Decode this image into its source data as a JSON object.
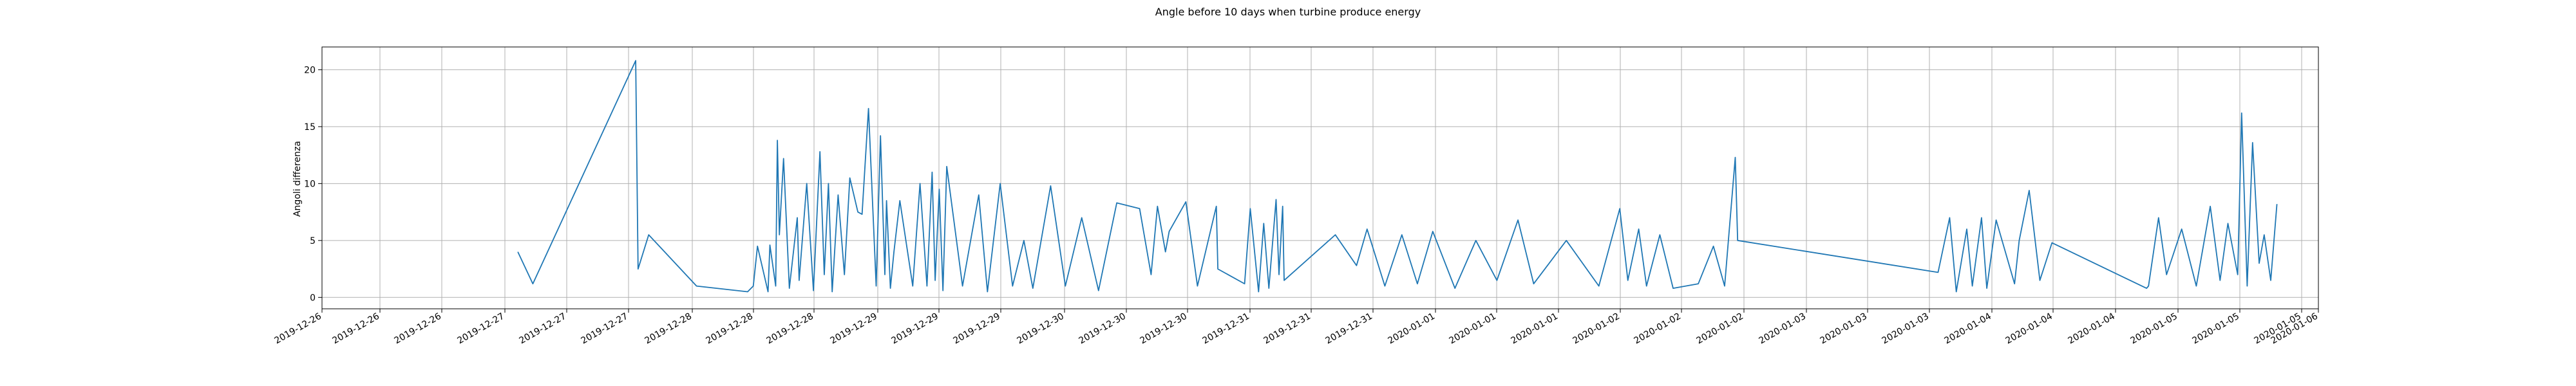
{
  "chart_data": {
    "type": "line",
    "title": "Angle before 10 days when turbine produce energy",
    "xlabel": "",
    "ylabel": "Angoli differenza",
    "ylim": [
      -1,
      22
    ],
    "y_ticks": [
      0,
      5,
      10,
      15,
      20
    ],
    "x_axis": "datetime",
    "x_ticks": [
      "2019-12-26",
      "2019-12-26",
      "2019-12-26",
      "2019-12-27",
      "2019-12-27",
      "2019-12-27",
      "2019-12-28",
      "2019-12-28",
      "2019-12-28",
      "2019-12-29",
      "2019-12-29",
      "2019-12-29",
      "2019-12-30",
      "2019-12-30",
      "2019-12-30",
      "2019-12-31",
      "2019-12-31",
      "2019-12-31",
      "2020-01-01",
      "2020-01-01",
      "2020-01-01",
      "2020-01-02",
      "2020-01-02",
      "2020-01-02",
      "2020-01-03",
      "2020-01-03",
      "2020-01-03",
      "2020-01-04",
      "2020-01-04",
      "2020-01-04",
      "2020-01-05",
      "2020-01-05",
      "2020-01-05",
      "2020-01-06"
    ],
    "grid": true,
    "line_color": "#1f77b4",
    "series": [
      {
        "x": [
          "2019-12-27 01:54",
          "2019-12-27 03:53",
          "2019-12-27 17:29",
          "2019-12-27 17:48",
          "2019-12-27 19:12",
          "2019-12-28 01:32",
          "2019-12-28 08:17",
          "2019-12-28 09:02",
          "2019-12-28 09:35",
          "2019-12-28 10:59",
          "2019-12-28 11:14",
          "2019-12-28 12:00",
          "2019-12-28 12:13",
          "2019-12-28 12:29",
          "2019-12-28 13:02",
          "2019-12-28 13:48",
          "2019-12-28 14:51",
          "2019-12-28 15:06",
          "2019-12-28 16:06",
          "2019-12-28 16:59",
          "2019-12-28 17:51",
          "2019-12-28 18:25",
          "2019-12-28 18:58",
          "2019-12-28 19:28",
          "2019-12-28 20:15",
          "2019-12-28 21:05",
          "2019-12-28 21:48",
          "2019-12-28 22:52",
          "2019-12-28 23:25",
          "2019-12-29 00:16",
          "2019-12-29 01:17",
          "2019-12-29 01:51",
          "2019-12-29 02:26",
          "2019-12-29 02:39",
          "2019-12-29 03:10",
          "2019-12-29 03:38",
          "2019-12-29 04:25",
          "2019-12-29 06:07",
          "2019-12-29 07:05",
          "2019-12-29 08:00",
          "2019-12-29 08:41",
          "2019-12-29 09:05",
          "2019-12-29 09:37",
          "2019-12-29 10:07",
          "2019-12-29 10:37",
          "2019-12-29 12:42",
          "2019-12-29 14:51",
          "2019-12-29 16:00",
          "2019-12-29 17:41",
          "2019-12-29 19:19",
          "2019-12-29 20:49",
          "2019-12-29 22:00",
          "2019-12-30 00:21",
          "2019-12-30 02:18",
          "2019-12-30 04:28",
          "2019-12-30 06:41",
          "2019-12-30 09:06",
          "2019-12-30 12:07",
          "2019-12-30 13:38",
          "2019-12-30 14:29",
          "2019-12-30 15:32",
          "2019-12-30 16:02",
          "2019-12-30 18:14",
          "2019-12-30 19:46",
          "2019-12-30 22:16",
          "2019-12-30 22:28",
          "2019-12-31 02:00",
          "2019-12-31 02:45",
          "2019-12-31 03:51",
          "2019-12-31 04:32",
          "2019-12-31 05:13",
          "2019-12-31 06:10",
          "2019-12-31 06:33",
          "2019-12-31 07:02",
          "2019-12-31 07:14",
          "2019-12-31 14:00",
          "2019-12-31 16:48",
          "2019-12-31 18:12",
          "2019-12-31 20:33",
          "2019-12-31 22:48",
          "2020-01-01 00:51",
          "2020-01-01 02:53",
          "2020-01-01 05:49",
          "2020-01-01 08:35",
          "2020-01-01 11:22",
          "2020-01-01 14:09",
          "2020-01-01 16:14",
          "2020-01-01 20:33",
          "2020-01-02 00:51",
          "2020-01-02 03:37",
          "2020-01-02 04:41",
          "2020-01-02 06:07",
          "2020-01-02 07:09",
          "2020-01-02 08:55",
          "2020-01-02 10:40",
          "2020-01-02 14:00",
          "2020-01-02 16:00",
          "2020-01-02 17:29",
          "2020-01-02 18:53",
          "2020-01-02 19:12",
          "2020-01-03 21:42",
          "2020-01-03 23:14",
          "2020-01-04 00:07",
          "2020-01-04 01:30",
          "2020-01-04 02:14",
          "2020-01-04 03:27",
          "2020-01-04 04:09",
          "2020-01-04 05:23",
          "2020-01-04 07:49",
          "2020-01-04 08:26",
          "2020-01-04 09:45",
          "2020-01-04 11:10",
          "2020-01-04 12:46",
          "2020-01-05 01:16",
          "2020-01-05 01:32",
          "2020-01-05 02:52",
          "2020-01-05 03:55",
          "2020-01-05 05:55",
          "2020-01-05 07:51",
          "2020-01-05 09:42",
          "2020-01-05 11:00",
          "2020-01-05 12:02",
          "2020-01-05 13:20",
          "2020-01-05 13:51",
          "2020-01-05 14:35",
          "2020-01-05 15:18",
          "2020-01-05 16:10",
          "2020-01-05 16:50",
          "2020-01-05 17:42",
          "2020-01-05 18:31"
        ],
        "y": [
          4.0,
          1.2,
          20.8,
          2.5,
          5.5,
          1.0,
          0.5,
          1.0,
          4.5,
          0.5,
          4.6,
          1.0,
          13.8,
          5.5,
          12.2,
          0.8,
          7.0,
          1.5,
          10.0,
          0.6,
          12.8,
          2.0,
          10.0,
          0.5,
          9.0,
          2.0,
          10.5,
          7.5,
          7.3,
          16.6,
          1.0,
          14.2,
          2.0,
          8.5,
          0.8,
          4.0,
          8.5,
          1.0,
          10.0,
          1.0,
          11.0,
          1.5,
          9.5,
          0.6,
          11.5,
          1.0,
          9.0,
          0.5,
          10.0,
          1.0,
          5.0,
          0.8,
          9.8,
          1.0,
          7.0,
          0.6,
          8.3,
          7.8,
          2.0,
          8.0,
          4.0,
          5.8,
          8.4,
          1.0,
          8.0,
          2.5,
          1.2,
          7.8,
          0.5,
          6.5,
          0.8,
          8.6,
          2.0,
          8.0,
          1.5,
          5.5,
          2.8,
          6.0,
          1.0,
          5.5,
          1.2,
          5.8,
          0.8,
          5.0,
          1.5,
          6.8,
          1.2,
          5.0,
          1.0,
          7.8,
          1.5,
          6.0,
          1.0,
          5.5,
          0.8,
          1.2,
          4.5,
          1.0,
          12.3,
          5.0,
          2.2,
          7.0,
          0.5,
          6.0,
          1.0,
          7.0,
          0.8,
          6.8,
          1.2,
          5.0,
          9.4,
          1.5,
          4.8,
          0.8,
          1.0,
          7.0,
          2.0,
          6.0,
          1.0,
          8.0,
          1.5,
          6.5,
          2.0,
          16.2,
          1.0,
          13.6,
          3.0,
          5.5,
          1.5,
          8.2
        ]
      }
    ]
  }
}
